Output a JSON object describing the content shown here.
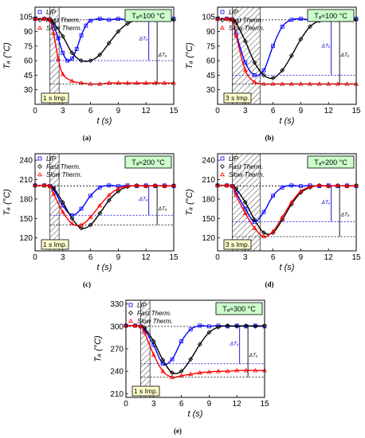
{
  "chart_data": [
    {
      "type": "scatter",
      "panel_label": "(a)",
      "condition": "Tₐ≈100 °C",
      "ylabel": "Tₐ (°C)",
      "xlabel": "t (s)",
      "xlim": [
        0,
        15
      ],
      "ylim": [
        15,
        115
      ],
      "xticks": [
        0,
        3,
        6,
        9,
        12,
        15
      ],
      "yticks": [
        30,
        45,
        60,
        75,
        90,
        105
      ],
      "pulse_label": "1 s Imp.",
      "pulse": [
        1.6,
        2.6
      ],
      "setpoint": 102,
      "delta_labels": [
        "ΔTₐ",
        "ΔTₐ"
      ],
      "legend": [
        "LIP",
        "Fast Therm.",
        "Slow Therm."
      ],
      "series": [
        {
          "name": "LIP",
          "color": "#0000ff",
          "x": [
            0,
            1,
            1.6,
            2,
            2.5,
            3,
            3.5,
            4,
            4.5,
            5,
            5.5,
            6,
            7,
            8,
            9,
            10,
            11,
            12,
            13,
            14,
            15
          ],
          "y": [
            103,
            103,
            102,
            96,
            83,
            68,
            60,
            62,
            72,
            86,
            96,
            101,
            103,
            102,
            103,
            102,
            103,
            102,
            103,
            102,
            103
          ]
        },
        {
          "name": "Fast Therm.",
          "color": "#000000",
          "x": [
            0,
            1,
            1.6,
            2,
            3,
            4,
            5,
            6,
            7,
            8,
            9,
            10,
            11,
            12,
            13,
            14,
            15
          ],
          "y": [
            103,
            103,
            102,
            99,
            85,
            68,
            60,
            60,
            66,
            78,
            90,
            98,
            102,
            103,
            102,
            103,
            102
          ]
        },
        {
          "name": "Slow Therm.",
          "color": "#ff0000",
          "x": [
            0,
            1,
            1.6,
            2,
            2.5,
            3,
            4,
            5,
            6,
            7,
            8,
            9,
            10,
            11,
            12,
            13,
            14,
            15
          ],
          "y": [
            103,
            103,
            102,
            88,
            62,
            46,
            39,
            37,
            36,
            36,
            37,
            37,
            37,
            37,
            37,
            37,
            37,
            37
          ]
        }
      ]
    },
    {
      "type": "scatter",
      "panel_label": "(b)",
      "condition": "Tₐ≈100 °C",
      "ylabel": "Tₐ (°C)",
      "xlabel": "t (s)",
      "xlim": [
        0,
        15
      ],
      "ylim": [
        15,
        115
      ],
      "xticks": [
        0,
        3,
        6,
        9,
        12,
        15
      ],
      "yticks": [
        30,
        45,
        60,
        75,
        90,
        105
      ],
      "pulse_label": "3 s Imp.",
      "pulse": [
        1.6,
        4.6
      ],
      "setpoint": 102,
      "delta_labels": [
        "ΔTₐ",
        "ΔTₐ"
      ],
      "legend": [
        "LIP",
        "Fast Therm.",
        "Slow Therm."
      ],
      "series": [
        {
          "name": "LIP",
          "color": "#0000ff",
          "x": [
            0,
            1,
            1.6,
            2,
            3,
            4,
            5,
            6,
            7,
            8,
            9,
            10,
            11,
            12,
            13,
            14,
            15
          ],
          "y": [
            103,
            103,
            102,
            88,
            58,
            45,
            50,
            75,
            95,
            102,
            103,
            102,
            103,
            102,
            103,
            102,
            103
          ]
        },
        {
          "name": "Fast Therm.",
          "color": "#000000",
          "x": [
            0,
            1,
            1.6,
            2,
            3,
            4,
            5,
            6,
            7,
            8,
            9,
            10,
            11,
            12,
            13,
            14,
            15
          ],
          "y": [
            103,
            103,
            102,
            99,
            80,
            58,
            45,
            42,
            50,
            65,
            82,
            95,
            101,
            103,
            102,
            103,
            102
          ]
        },
        {
          "name": "Slow Therm.",
          "color": "#ff0000",
          "x": [
            0,
            1,
            1.6,
            2,
            3,
            4,
            5,
            6,
            7,
            8,
            9,
            10,
            11,
            12,
            13,
            14,
            15
          ],
          "y": [
            103,
            103,
            102,
            86,
            50,
            38,
            36,
            36,
            36,
            36,
            36,
            36,
            36,
            36,
            36,
            36,
            36
          ]
        }
      ]
    },
    {
      "type": "scatter",
      "panel_label": "(c)",
      "condition": "Tₐ≈200 °C",
      "ylabel": "Tₐ (°C)",
      "xlabel": "t (s)",
      "xlim": [
        0,
        15
      ],
      "ylim": [
        100,
        250
      ],
      "xticks": [
        0,
        3,
        6,
        9,
        12,
        15
      ],
      "yticks": [
        120,
        150,
        180,
        210,
        240
      ],
      "pulse_label": "1 s Imp.",
      "pulse": [
        1.6,
        2.6
      ],
      "setpoint": 200,
      "delta_labels": [
        "ΔTₐ",
        "ΔTₐ"
      ],
      "legend": [
        "LIP",
        "Fast Therm.",
        "Slow Therm."
      ],
      "series": [
        {
          "name": "LIP",
          "color": "#0000ff",
          "x": [
            0,
            1,
            1.6,
            2,
            3,
            4,
            5,
            6,
            7,
            8,
            9,
            10,
            11,
            12,
            13,
            14,
            15
          ],
          "y": [
            201,
            201,
            200,
            195,
            170,
            155,
            165,
            185,
            198,
            201,
            200,
            201,
            200,
            201,
            200,
            201,
            200
          ]
        },
        {
          "name": "Fast Therm.",
          "color": "#000000",
          "x": [
            0,
            1,
            1.6,
            2,
            3,
            4,
            5,
            6,
            7,
            8,
            9,
            10,
            11,
            12,
            13,
            14,
            15
          ],
          "y": [
            201,
            201,
            200,
            197,
            175,
            150,
            135,
            140,
            158,
            178,
            192,
            199,
            201,
            200,
            201,
            200,
            201
          ]
        },
        {
          "name": "Slow Therm.",
          "color": "#ff0000",
          "x": [
            0,
            1,
            1.6,
            2,
            3,
            4,
            5,
            6,
            7,
            8,
            9,
            10,
            11,
            12,
            13,
            14,
            15
          ],
          "y": [
            201,
            201,
            200,
            188,
            160,
            142,
            140,
            152,
            170,
            186,
            196,
            200,
            201,
            200,
            201,
            200,
            201
          ]
        }
      ]
    },
    {
      "type": "scatter",
      "panel_label": "(d)",
      "condition": "Tₐ≈200 °C",
      "ylabel": "Tₐ (°C)",
      "xlabel": "t (s)",
      "xlim": [
        0,
        15
      ],
      "ylim": [
        100,
        250
      ],
      "xticks": [
        0,
        3,
        6,
        9,
        12,
        15
      ],
      "yticks": [
        120,
        150,
        180,
        210,
        240
      ],
      "pulse_label": "3 s Imp.",
      "pulse": [
        1.6,
        4.6
      ],
      "setpoint": 200,
      "delta_labels": [
        "ΔTₐ",
        "ΔTₐ"
      ],
      "legend": [
        "LIP",
        "Fast Therm.",
        "Slow Therm."
      ],
      "series": [
        {
          "name": "LIP",
          "color": "#0000ff",
          "x": [
            0,
            1,
            1.6,
            2,
            3,
            4,
            5,
            6,
            7,
            8,
            9,
            10,
            11,
            12,
            13,
            14,
            15
          ],
          "y": [
            201,
            201,
            200,
            190,
            165,
            145,
            160,
            185,
            198,
            201,
            200,
            201,
            200,
            201,
            200,
            201,
            200
          ]
        },
        {
          "name": "Fast Therm.",
          "color": "#000000",
          "x": [
            0,
            1,
            1.6,
            2,
            3,
            4,
            5,
            6,
            7,
            8,
            9,
            10,
            11,
            12,
            13,
            14,
            15
          ],
          "y": [
            201,
            201,
            200,
            196,
            175,
            148,
            128,
            128,
            148,
            172,
            190,
            198,
            201,
            200,
            201,
            200,
            201
          ]
        },
        {
          "name": "Slow Therm.",
          "color": "#ff0000",
          "x": [
            0,
            1,
            1.6,
            2,
            3,
            4,
            5,
            6,
            7,
            8,
            9,
            10,
            11,
            12,
            13,
            14,
            15
          ],
          "y": [
            201,
            201,
            200,
            186,
            158,
            135,
            122,
            130,
            152,
            175,
            192,
            199,
            201,
            200,
            201,
            200,
            201
          ]
        }
      ]
    },
    {
      "type": "scatter",
      "panel_label": "(e)",
      "condition": "Tₐ≈300 °C",
      "ylabel": "Tₐ (°C)",
      "xlabel": "t (s)",
      "xlim": [
        0,
        15
      ],
      "ylim": [
        205,
        335
      ],
      "xticks": [
        0,
        3,
        6,
        9,
        12,
        15
      ],
      "yticks": [
        210,
        240,
        270,
        300,
        330
      ],
      "pulse_label": "1 s Imp.",
      "pulse": [
        1.6,
        2.6
      ],
      "setpoint": 300,
      "delta_labels": [
        "ΔTₐ",
        "ΔTₐ"
      ],
      "legend": [
        "LIP",
        "Fast Therm.",
        "Slow Therm."
      ],
      "series": [
        {
          "name": "LIP",
          "color": "#0000ff",
          "x": [
            0,
            1,
            1.6,
            2,
            3,
            4,
            5,
            6,
            7,
            8,
            9,
            10,
            11,
            12,
            13,
            14,
            15
          ],
          "y": [
            301,
            301,
            300,
            296,
            275,
            250,
            256,
            280,
            296,
            301,
            300,
            301,
            300,
            301,
            300,
            301,
            300
          ]
        },
        {
          "name": "Fast Therm.",
          "color": "#000000",
          "x": [
            0,
            1,
            1.6,
            2,
            3,
            4,
            5,
            6,
            7,
            8,
            9,
            10,
            11,
            12,
            13,
            14,
            15
          ],
          "y": [
            301,
            301,
            300,
            298,
            280,
            255,
            238,
            240,
            256,
            276,
            292,
            299,
            301,
            300,
            301,
            300,
            301
          ]
        },
        {
          "name": "Slow Therm.",
          "color": "#ff0000",
          "x": [
            0,
            1,
            1.6,
            2,
            3,
            4,
            5,
            6,
            7,
            8,
            9,
            10,
            11,
            12,
            13,
            14,
            15
          ],
          "y": [
            301,
            301,
            300,
            292,
            262,
            240,
            232,
            234,
            236,
            238,
            239,
            240,
            240,
            241,
            241,
            241,
            241
          ]
        }
      ]
    }
  ]
}
